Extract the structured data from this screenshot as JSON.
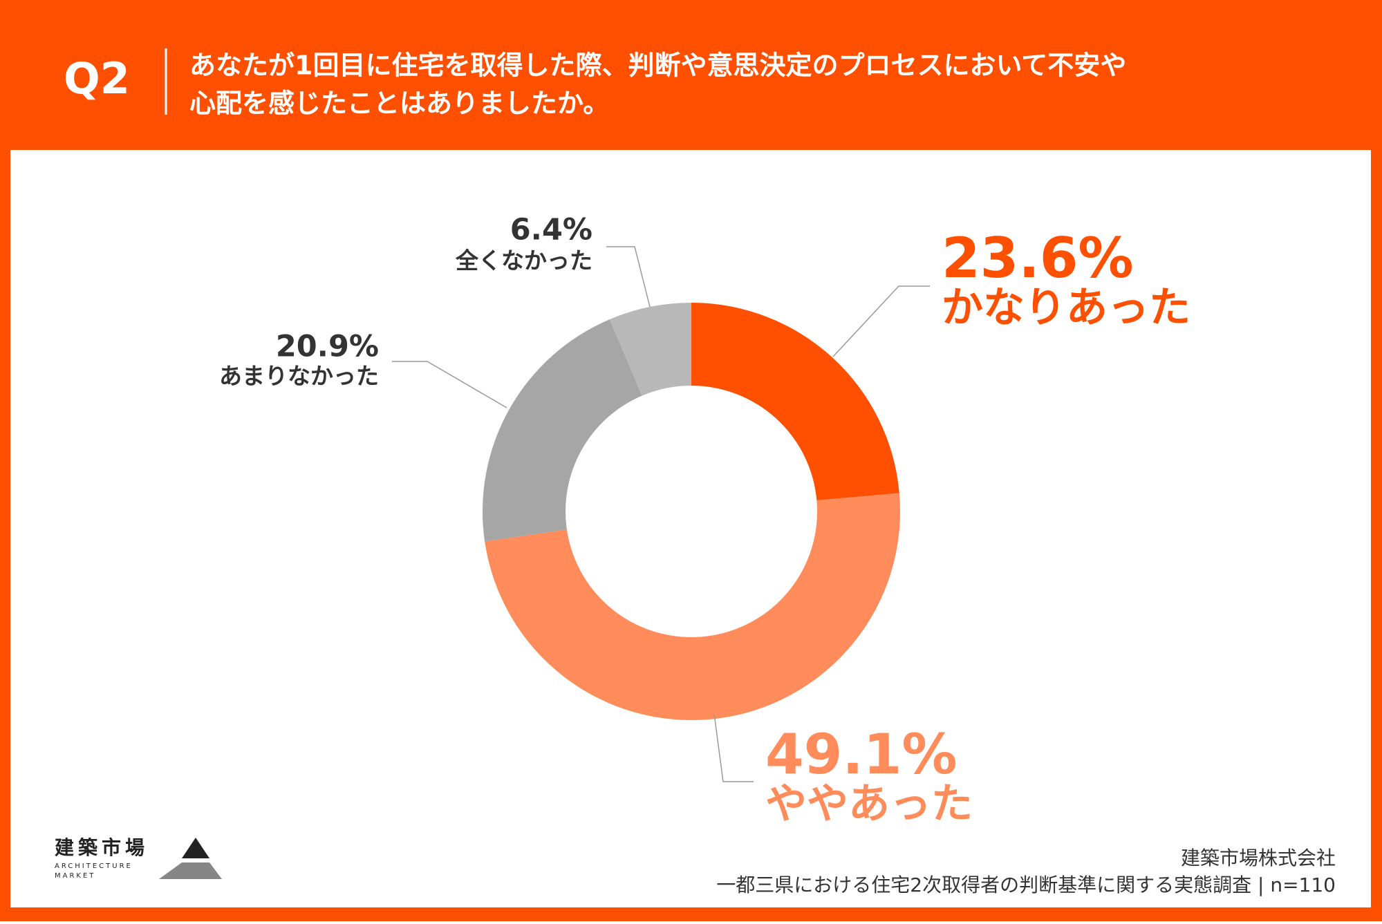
{
  "header": {
    "question": "Q2",
    "title": [
      "あなたが1回目に住宅を取得した際、判断や意思決定のプロセスにおいて不安や",
      "心配を感じたことはありましたか。"
    ]
  },
  "chart_data": {
    "type": "pie",
    "donut": true,
    "categories": [
      "かなりあった",
      "ややあった",
      "あまりなかった",
      "全くなかった"
    ],
    "values": [
      23.6,
      49.1,
      20.9,
      6.4
    ],
    "value_labels": [
      "23.6%",
      "49.1%",
      "20.9%",
      "6.4%"
    ],
    "colors": [
      "#ff4f00",
      "#ff8c5a",
      "#a6a6a6",
      "#b8b8b8"
    ]
  },
  "logo": {
    "name": "建築市場",
    "sub": [
      "ARCHITECTURE",
      "MARKET"
    ]
  },
  "source": {
    "company": "建築市場株式会社",
    "survey": "一都三県における住宅2次取得者の判断基準に関する実態調査 | n=110"
  }
}
